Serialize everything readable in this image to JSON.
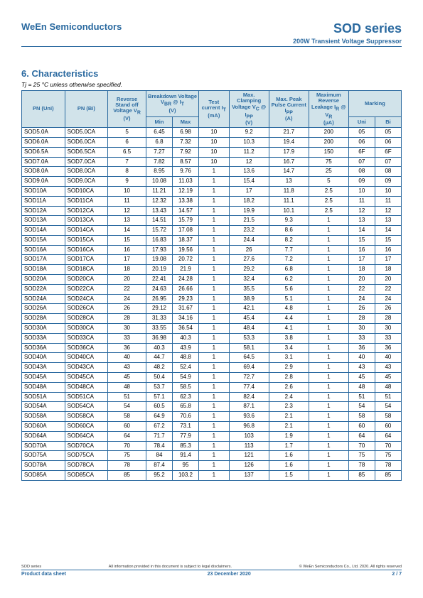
{
  "header": {
    "company": "WeEn Semiconductors",
    "series": "SOD series",
    "subtitle": "200W Transient Voltage Suppressor"
  },
  "section": {
    "title": "6. Characteristics",
    "note": "Tj = 25 °C unless otherwise specified."
  },
  "columns": {
    "pn_uni": "PN (Uni)",
    "pn_bi": "PN (Bi)",
    "vr": "Reverse Stand off Voltage V",
    "vr_unit": "(V)",
    "vbr": "Breakdown Voltage V",
    "vbr_at": " @ I",
    "vbr_unit": "(V)",
    "vbr_min": "Min",
    "vbr_max": "Max",
    "it": "Test current I",
    "it_unit": "(mA)",
    "vc": "Max. Clamping Voltage V",
    "vc_at": " @ I",
    "vc_unit": "(V)",
    "ipp": "Max. Peak Pulse Current I",
    "ipp_unit": "(A)",
    "ir": "Maximum Reverse Leakage I",
    "ir_at": " @ V",
    "ir_unit": "(µA)",
    "marking": "Marking",
    "mark_uni": "Uni",
    "mark_bi": "Bi"
  },
  "rows": [
    [
      "SOD5.0A",
      "SOD5.0CA",
      "5",
      "6.45",
      "6.98",
      "10",
      "9.2",
      "21.7",
      "200",
      "05",
      "05"
    ],
    [
      "SOD6.0A",
      "SOD6.0CA",
      "6",
      "6.8",
      "7.32",
      "10",
      "10.3",
      "19.4",
      "200",
      "06",
      "06"
    ],
    [
      "SOD6.5A",
      "SOD6.5CA",
      "6.5",
      "7.27",
      "7.92",
      "10",
      "11.2",
      "17.9",
      "150",
      "6F",
      "6F"
    ],
    [
      "SOD7.0A",
      "SOD7.0CA",
      "7",
      "7.82",
      "8.57",
      "10",
      "12",
      "16.7",
      "75",
      "07",
      "07"
    ],
    [
      "SOD8.0A",
      "SOD8.0CA",
      "8",
      "8.95",
      "9.76",
      "1",
      "13.6",
      "14.7",
      "25",
      "08",
      "08"
    ],
    [
      "SOD9.0A",
      "SOD9.0CA",
      "9",
      "10.08",
      "11.03",
      "1",
      "15.4",
      "13",
      "5",
      "09",
      "09"
    ],
    [
      "SOD10A",
      "SOD10CA",
      "10",
      "11.21",
      "12.19",
      "1",
      "17",
      "11.8",
      "2.5",
      "10",
      "10"
    ],
    [
      "SOD11A",
      "SOD11CA",
      "11",
      "12.32",
      "13.38",
      "1",
      "18.2",
      "11.1",
      "2.5",
      "11",
      "11"
    ],
    [
      "SOD12A",
      "SOD12CA",
      "12",
      "13.43",
      "14.57",
      "1",
      "19.9",
      "10.1",
      "2.5",
      "12",
      "12"
    ],
    [
      "SOD13A",
      "SOD13CA",
      "13",
      "14.51",
      "15.79",
      "1",
      "21.5",
      "9.3",
      "1",
      "13",
      "13"
    ],
    [
      "SOD14A",
      "SOD14CA",
      "14",
      "15.72",
      "17.08",
      "1",
      "23.2",
      "8.6",
      "1",
      "14",
      "14"
    ],
    [
      "SOD15A",
      "SOD15CA",
      "15",
      "16.83",
      "18.37",
      "1",
      "24.4",
      "8.2",
      "1",
      "15",
      "15"
    ],
    [
      "SOD16A",
      "SOD16CA",
      "16",
      "17.93",
      "19.56",
      "1",
      "26",
      "7.7",
      "1",
      "16",
      "16"
    ],
    [
      "SOD17A",
      "SOD17CA",
      "17",
      "19.08",
      "20.72",
      "1",
      "27.6",
      "7.2",
      "1",
      "17",
      "17"
    ],
    [
      "SOD18A",
      "SOD18CA",
      "18",
      "20.19",
      "21.9",
      "1",
      "29.2",
      "6.8",
      "1",
      "18",
      "18"
    ],
    [
      "SOD20A",
      "SOD20CA",
      "20",
      "22.41",
      "24.28",
      "1",
      "32.4",
      "6.2",
      "1",
      "20",
      "20"
    ],
    [
      "SOD22A",
      "SOD22CA",
      "22",
      "24.63",
      "26.66",
      "1",
      "35.5",
      "5.6",
      "1",
      "22",
      "22"
    ],
    [
      "SOD24A",
      "SOD24CA",
      "24",
      "26.95",
      "29.23",
      "1",
      "38.9",
      "5.1",
      "1",
      "24",
      "24"
    ],
    [
      "SOD26A",
      "SOD26CA",
      "26",
      "29.12",
      "31.67",
      "1",
      "42.1",
      "4.8",
      "1",
      "26",
      "26"
    ],
    [
      "SOD28A",
      "SOD28CA",
      "28",
      "31.33",
      "34.16",
      "1",
      "45.4",
      "4.4",
      "1",
      "28",
      "28"
    ],
    [
      "SOD30A",
      "SOD30CA",
      "30",
      "33.55",
      "36.54",
      "1",
      "48.4",
      "4.1",
      "1",
      "30",
      "30"
    ],
    [
      "SOD33A",
      "SOD33CA",
      "33",
      "36.98",
      "40.3",
      "1",
      "53.3",
      "3.8",
      "1",
      "33",
      "33"
    ],
    [
      "SOD36A",
      "SOD36CA",
      "36",
      "40.3",
      "43.9",
      "1",
      "58.1",
      "3.4",
      "1",
      "36",
      "36"
    ],
    [
      "SOD40A",
      "SOD40CA",
      "40",
      "44.7",
      "48.8",
      "1",
      "64.5",
      "3.1",
      "1",
      "40",
      "40"
    ],
    [
      "SOD43A",
      "SOD43CA",
      "43",
      "48.2",
      "52.4",
      "1",
      "69.4",
      "2.9",
      "1",
      "43",
      "43"
    ],
    [
      "SOD45A",
      "SOD45CA",
      "45",
      "50.4",
      "54.9",
      "1",
      "72.7",
      "2.8",
      "1",
      "45",
      "45"
    ],
    [
      "SOD48A",
      "SOD48CA",
      "48",
      "53.7",
      "58.5",
      "1",
      "77.4",
      "2.6",
      "1",
      "48",
      "48"
    ],
    [
      "SOD51A",
      "SOD51CA",
      "51",
      "57.1",
      "62.3",
      "1",
      "82.4",
      "2.4",
      "1",
      "51",
      "51"
    ],
    [
      "SOD54A",
      "SOD54CA",
      "54",
      "60.5",
      "65.8",
      "1",
      "87.1",
      "2.3",
      "1",
      "54",
      "54"
    ],
    [
      "SOD58A",
      "SOD58CA",
      "58",
      "64.9",
      "70.6",
      "1",
      "93.6",
      "2.1",
      "1",
      "58",
      "58"
    ],
    [
      "SOD60A",
      "SOD60CA",
      "60",
      "67.2",
      "73.1",
      "1",
      "96.8",
      "2.1",
      "1",
      "60",
      "60"
    ],
    [
      "SOD64A",
      "SOD64CA",
      "64",
      "71.7",
      "77.9",
      "1",
      "103",
      "1.9",
      "1",
      "64",
      "64"
    ],
    [
      "SOD70A",
      "SOD70CA",
      "70",
      "78.4",
      "85.3",
      "1",
      "113",
      "1.7",
      "1",
      "70",
      "70"
    ],
    [
      "SOD75A",
      "SOD75CA",
      "75",
      "84",
      "91.4",
      "1",
      "121",
      "1.6",
      "1",
      "75",
      "75"
    ],
    [
      "SOD78A",
      "SOD78CA",
      "78",
      "87.4",
      "95",
      "1",
      "126",
      "1.6",
      "1",
      "78",
      "78"
    ],
    [
      "SOD85A",
      "SOD85CA",
      "85",
      "95.2",
      "103.2",
      "1",
      "137",
      "1.5",
      "1",
      "85",
      "85"
    ]
  ],
  "footer": {
    "top_left": "SOD series",
    "top_mid": "All information provided in this document is subject to legal disclaimers.",
    "top_right": "© WeEn Semiconductors Co., Ltd. 2020. All rights reserved",
    "bottom_left": "Product data sheet",
    "bottom_mid": "23 December 2020",
    "bottom_right": "2 / 7"
  },
  "colwidths": {
    "pn": "54px",
    "vr": "48px",
    "vbr_half": "33px",
    "it": "38px",
    "vc": "50px",
    "ipp": "50px",
    "ir": "50px",
    "mark": "33px"
  }
}
